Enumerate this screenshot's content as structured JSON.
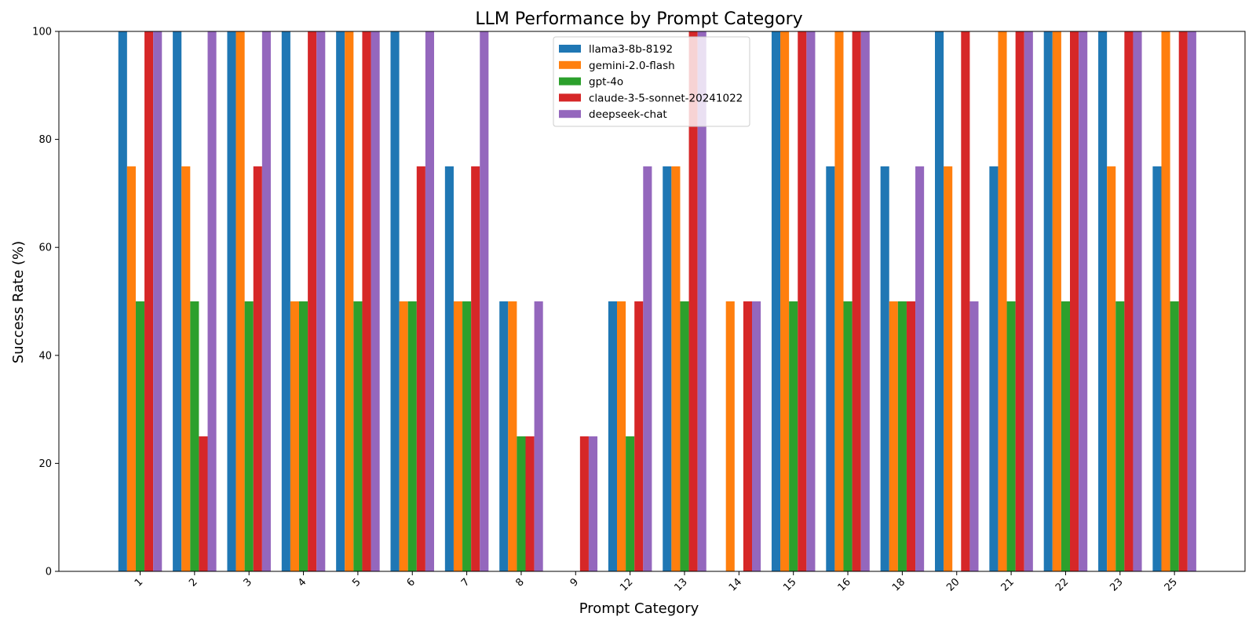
{
  "chart_data": {
    "type": "bar",
    "title": "LLM Performance by Prompt Category",
    "xlabel": "Prompt Category",
    "ylabel": "Success Rate (%)",
    "ylim": [
      0,
      100
    ],
    "yticks": [
      0,
      20,
      40,
      60,
      80,
      100
    ],
    "grid": false,
    "legend_position": "top-center",
    "categories": [
      "1",
      "2",
      "3",
      "4",
      "5",
      "6",
      "7",
      "8",
      "9",
      "12",
      "13",
      "14",
      "15",
      "16",
      "18",
      "20",
      "21",
      "22",
      "23",
      "25"
    ],
    "series": [
      {
        "name": "llama3-8b-8192",
        "color": "#1f77b4",
        "values": [
          100,
          100,
          100,
          100,
          100,
          100,
          75,
          50,
          0,
          50,
          75,
          0,
          100,
          75,
          75,
          100,
          75,
          100,
          100,
          75
        ]
      },
      {
        "name": "gemini-2.0-flash",
        "color": "#ff7f0e",
        "values": [
          75,
          75,
          100,
          50,
          100,
          50,
          50,
          50,
          0,
          50,
          75,
          50,
          100,
          100,
          50,
          75,
          100,
          100,
          75,
          100
        ]
      },
      {
        "name": "gpt-4o",
        "color": "#2ca02c",
        "values": [
          50,
          50,
          50,
          50,
          50,
          50,
          50,
          25,
          0,
          25,
          50,
          0,
          50,
          50,
          50,
          0,
          50,
          50,
          50,
          50
        ]
      },
      {
        "name": "claude-3-5-sonnet-20241022",
        "color": "#d62728",
        "values": [
          100,
          25,
          75,
          100,
          100,
          75,
          75,
          25,
          25,
          50,
          100,
          50,
          100,
          100,
          50,
          100,
          100,
          100,
          100,
          100
        ]
      },
      {
        "name": "deepseek-chat",
        "color": "#9467bd",
        "values": [
          100,
          100,
          100,
          100,
          100,
          100,
          100,
          50,
          25,
          75,
          100,
          50,
          100,
          100,
          75,
          50,
          100,
          100,
          100,
          100
        ]
      }
    ]
  }
}
